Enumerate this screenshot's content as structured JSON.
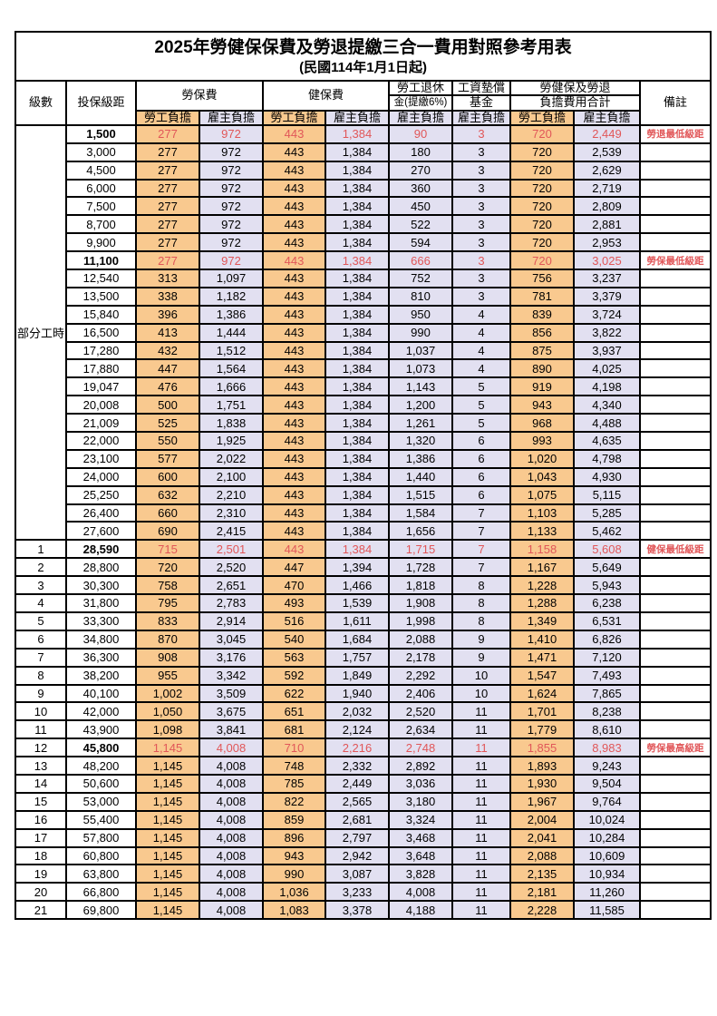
{
  "title": "2025年勞健保保費及勞退提繳三合一費用對照參考用表",
  "subtitle": "(民國114年1月1日起)",
  "colors": {
    "employee_column_bg": "#F9C98F",
    "employer_column_bg": "#E2E0F1",
    "highlight_text": "#E15759",
    "border": "#000000"
  },
  "header": {
    "level": "級數",
    "bracket": "投保級距",
    "labor_fee": "勞保費",
    "health_fee": "健保費",
    "pension_line1": "勞工退休",
    "pension_line2": "金(提繳6%)",
    "fund_line1": "工資墊償",
    "fund_line2": "基金",
    "total_line1": "勞健保及勞退",
    "total_line2": "負擔費用合計",
    "remark": "備註",
    "employee": "勞工負擔",
    "employer": "雇主負擔"
  },
  "part_time": {
    "label": "部分工時",
    "row_count": 23
  },
  "value_column_types": [
    "emp",
    "er",
    "emp",
    "er",
    "er",
    "er",
    "emp",
    "er"
  ],
  "rows": [
    {
      "bracket": "1,500",
      "values": [
        "277",
        "972",
        "443",
        "1,384",
        "90",
        "3",
        "720",
        "2,449"
      ],
      "remark": "勞退最低級距",
      "red": true
    },
    {
      "bracket": "3,000",
      "values": [
        "277",
        "972",
        "443",
        "1,384",
        "180",
        "3",
        "720",
        "2,539"
      ],
      "remark": "",
      "red": false
    },
    {
      "bracket": "4,500",
      "values": [
        "277",
        "972",
        "443",
        "1,384",
        "270",
        "3",
        "720",
        "2,629"
      ],
      "remark": "",
      "red": false
    },
    {
      "bracket": "6,000",
      "values": [
        "277",
        "972",
        "443",
        "1,384",
        "360",
        "3",
        "720",
        "2,719"
      ],
      "remark": "",
      "red": false
    },
    {
      "bracket": "7,500",
      "values": [
        "277",
        "972",
        "443",
        "1,384",
        "450",
        "3",
        "720",
        "2,809"
      ],
      "remark": "",
      "red": false
    },
    {
      "bracket": "8,700",
      "values": [
        "277",
        "972",
        "443",
        "1,384",
        "522",
        "3",
        "720",
        "2,881"
      ],
      "remark": "",
      "red": false
    },
    {
      "bracket": "9,900",
      "values": [
        "277",
        "972",
        "443",
        "1,384",
        "594",
        "3",
        "720",
        "2,953"
      ],
      "remark": "",
      "red": false
    },
    {
      "bracket": "11,100",
      "values": [
        "277",
        "972",
        "443",
        "1,384",
        "666",
        "3",
        "720",
        "3,025"
      ],
      "remark": "勞保最低級距",
      "red": true
    },
    {
      "bracket": "12,540",
      "values": [
        "313",
        "1,097",
        "443",
        "1,384",
        "752",
        "3",
        "756",
        "3,237"
      ],
      "remark": "",
      "red": false
    },
    {
      "bracket": "13,500",
      "values": [
        "338",
        "1,182",
        "443",
        "1,384",
        "810",
        "3",
        "781",
        "3,379"
      ],
      "remark": "",
      "red": false
    },
    {
      "bracket": "15,840",
      "values": [
        "396",
        "1,386",
        "443",
        "1,384",
        "950",
        "4",
        "839",
        "3,724"
      ],
      "remark": "",
      "red": false
    },
    {
      "bracket": "16,500",
      "values": [
        "413",
        "1,444",
        "443",
        "1,384",
        "990",
        "4",
        "856",
        "3,822"
      ],
      "remark": "",
      "red": false
    },
    {
      "bracket": "17,280",
      "values": [
        "432",
        "1,512",
        "443",
        "1,384",
        "1,037",
        "4",
        "875",
        "3,937"
      ],
      "remark": "",
      "red": false
    },
    {
      "bracket": "17,880",
      "values": [
        "447",
        "1,564",
        "443",
        "1,384",
        "1,073",
        "4",
        "890",
        "4,025"
      ],
      "remark": "",
      "red": false
    },
    {
      "bracket": "19,047",
      "values": [
        "476",
        "1,666",
        "443",
        "1,384",
        "1,143",
        "5",
        "919",
        "4,198"
      ],
      "remark": "",
      "red": false
    },
    {
      "bracket": "20,008",
      "values": [
        "500",
        "1,751",
        "443",
        "1,384",
        "1,200",
        "5",
        "943",
        "4,340"
      ],
      "remark": "",
      "red": false
    },
    {
      "bracket": "21,009",
      "values": [
        "525",
        "1,838",
        "443",
        "1,384",
        "1,261",
        "5",
        "968",
        "4,488"
      ],
      "remark": "",
      "red": false
    },
    {
      "bracket": "22,000",
      "values": [
        "550",
        "1,925",
        "443",
        "1,384",
        "1,320",
        "6",
        "993",
        "4,635"
      ],
      "remark": "",
      "red": false
    },
    {
      "bracket": "23,100",
      "values": [
        "577",
        "2,022",
        "443",
        "1,384",
        "1,386",
        "6",
        "1,020",
        "4,798"
      ],
      "remark": "",
      "red": false
    },
    {
      "bracket": "24,000",
      "values": [
        "600",
        "2,100",
        "443",
        "1,384",
        "1,440",
        "6",
        "1,043",
        "4,930"
      ],
      "remark": "",
      "red": false
    },
    {
      "bracket": "25,250",
      "values": [
        "632",
        "2,210",
        "443",
        "1,384",
        "1,515",
        "6",
        "1,075",
        "5,115"
      ],
      "remark": "",
      "red": false
    },
    {
      "bracket": "26,400",
      "values": [
        "660",
        "2,310",
        "443",
        "1,384",
        "1,584",
        "7",
        "1,103",
        "5,285"
      ],
      "remark": "",
      "red": false
    },
    {
      "bracket": "27,600",
      "values": [
        "690",
        "2,415",
        "443",
        "1,384",
        "1,656",
        "7",
        "1,133",
        "5,462"
      ],
      "remark": "",
      "red": false
    },
    {
      "level": "1",
      "bracket": "28,590",
      "values": [
        "715",
        "2,501",
        "443",
        "1,384",
        "1,715",
        "7",
        "1,158",
        "5,608"
      ],
      "remark": "健保最低級距",
      "red": true
    },
    {
      "level": "2",
      "bracket": "28,800",
      "values": [
        "720",
        "2,520",
        "447",
        "1,394",
        "1,728",
        "7",
        "1,167",
        "5,649"
      ],
      "remark": "",
      "red": false
    },
    {
      "level": "3",
      "bracket": "30,300",
      "values": [
        "758",
        "2,651",
        "470",
        "1,466",
        "1,818",
        "8",
        "1,228",
        "5,943"
      ],
      "remark": "",
      "red": false
    },
    {
      "level": "4",
      "bracket": "31,800",
      "values": [
        "795",
        "2,783",
        "493",
        "1,539",
        "1,908",
        "8",
        "1,288",
        "6,238"
      ],
      "remark": "",
      "red": false
    },
    {
      "level": "5",
      "bracket": "33,300",
      "values": [
        "833",
        "2,914",
        "516",
        "1,611",
        "1,998",
        "8",
        "1,349",
        "6,531"
      ],
      "remark": "",
      "red": false
    },
    {
      "level": "6",
      "bracket": "34,800",
      "values": [
        "870",
        "3,045",
        "540",
        "1,684",
        "2,088",
        "9",
        "1,410",
        "6,826"
      ],
      "remark": "",
      "red": false
    },
    {
      "level": "7",
      "bracket": "36,300",
      "values": [
        "908",
        "3,176",
        "563",
        "1,757",
        "2,178",
        "9",
        "1,471",
        "7,120"
      ],
      "remark": "",
      "red": false
    },
    {
      "level": "8",
      "bracket": "38,200",
      "values": [
        "955",
        "3,342",
        "592",
        "1,849",
        "2,292",
        "10",
        "1,547",
        "7,493"
      ],
      "remark": "",
      "red": false
    },
    {
      "level": "9",
      "bracket": "40,100",
      "values": [
        "1,002",
        "3,509",
        "622",
        "1,940",
        "2,406",
        "10",
        "1,624",
        "7,865"
      ],
      "remark": "",
      "red": false
    },
    {
      "level": "10",
      "bracket": "42,000",
      "values": [
        "1,050",
        "3,675",
        "651",
        "2,032",
        "2,520",
        "11",
        "1,701",
        "8,238"
      ],
      "remark": "",
      "red": false
    },
    {
      "level": "11",
      "bracket": "43,900",
      "values": [
        "1,098",
        "3,841",
        "681",
        "2,124",
        "2,634",
        "11",
        "1,779",
        "8,610"
      ],
      "remark": "",
      "red": false
    },
    {
      "level": "12",
      "bracket": "45,800",
      "values": [
        "1,145",
        "4,008",
        "710",
        "2,216",
        "2,748",
        "11",
        "1,855",
        "8,983"
      ],
      "remark": "勞保最高級距",
      "red": true
    },
    {
      "level": "13",
      "bracket": "48,200",
      "values": [
        "1,145",
        "4,008",
        "748",
        "2,332",
        "2,892",
        "11",
        "1,893",
        "9,243"
      ],
      "remark": "",
      "red": false
    },
    {
      "level": "14",
      "bracket": "50,600",
      "values": [
        "1,145",
        "4,008",
        "785",
        "2,449",
        "3,036",
        "11",
        "1,930",
        "9,504"
      ],
      "remark": "",
      "red": false
    },
    {
      "level": "15",
      "bracket": "53,000",
      "values": [
        "1,145",
        "4,008",
        "822",
        "2,565",
        "3,180",
        "11",
        "1,967",
        "9,764"
      ],
      "remark": "",
      "red": false
    },
    {
      "level": "16",
      "bracket": "55,400",
      "values": [
        "1,145",
        "4,008",
        "859",
        "2,681",
        "3,324",
        "11",
        "2,004",
        "10,024"
      ],
      "remark": "",
      "red": false
    },
    {
      "level": "17",
      "bracket": "57,800",
      "values": [
        "1,145",
        "4,008",
        "896",
        "2,797",
        "3,468",
        "11",
        "2,041",
        "10,284"
      ],
      "remark": "",
      "red": false
    },
    {
      "level": "18",
      "bracket": "60,800",
      "values": [
        "1,145",
        "4,008",
        "943",
        "2,942",
        "3,648",
        "11",
        "2,088",
        "10,609"
      ],
      "remark": "",
      "red": false
    },
    {
      "level": "19",
      "bracket": "63,800",
      "values": [
        "1,145",
        "4,008",
        "990",
        "3,087",
        "3,828",
        "11",
        "2,135",
        "10,934"
      ],
      "remark": "",
      "red": false
    },
    {
      "level": "20",
      "bracket": "66,800",
      "values": [
        "1,145",
        "4,008",
        "1,036",
        "3,233",
        "4,008",
        "11",
        "2,181",
        "11,260"
      ],
      "remark": "",
      "red": false
    },
    {
      "level": "21",
      "bracket": "69,800",
      "values": [
        "1,145",
        "4,008",
        "1,083",
        "3,378",
        "4,188",
        "11",
        "2,228",
        "11,585"
      ],
      "remark": "",
      "red": false
    }
  ]
}
